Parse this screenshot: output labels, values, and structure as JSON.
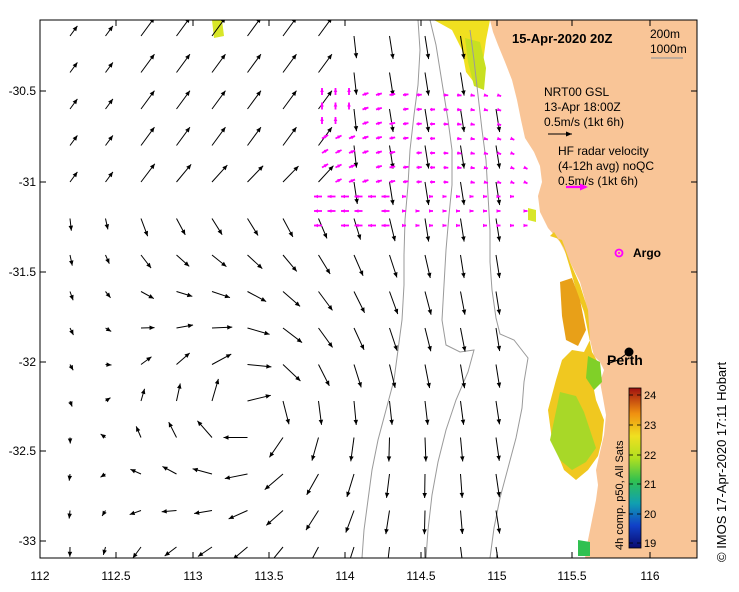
{
  "title": "15-Apr-2020 20Z",
  "depth_legend": [
    "200m",
    "1000m"
  ],
  "legend_model": [
    "NRT00 GSL",
    "13-Apr 18:00Z",
    "0.5m/s (1kt 6h)"
  ],
  "legend_radar": [
    "HF radar velocity",
    "(4-12h avg) noQC",
    "0.5m/s (1kt 6h)"
  ],
  "argo_label": "Argo",
  "city_label": "Perth",
  "x_ticks": [
    "112",
    "112.5",
    "113",
    "113.5",
    "114",
    "114.5",
    "115",
    "115.5",
    "116"
  ],
  "y_ticks": [
    "-30.5",
    "-31",
    "-31.5",
    "-32",
    "-32.5",
    "-33"
  ],
  "colorbar": {
    "title": "4h comp. p50, All Sats",
    "ticks": [
      "24",
      "23",
      "22",
      "21",
      "20",
      "19"
    ]
  },
  "credit": "© IMOS 17-Apr-2020 17:11 Hobart",
  "colors": {
    "land": "#f9c597",
    "model_arrow": "#000000",
    "radar_arrow": "#ff00ff",
    "bathymetry": "#9a9a9a"
  }
}
